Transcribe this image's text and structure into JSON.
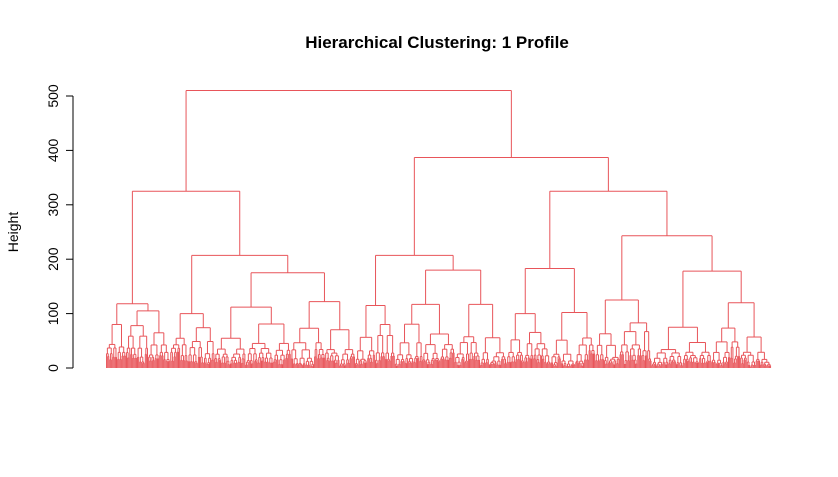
{
  "chart_data": {
    "type": "dendrogram",
    "title": "Hierarchical Clustering: 1 Profile",
    "xlabel": "",
    "ylabel": "Height",
    "ylim": [
      0,
      500
    ],
    "yticks": [
      0,
      100,
      200,
      300,
      400,
      500
    ],
    "ytick_labels": [
      "0",
      "100",
      "200",
      "300",
      "400",
      "500"
    ],
    "line_color": "#e8555a",
    "leaf_count": 600,
    "merges": [
      {
        "id": "root",
        "height": 510,
        "left": "A",
        "right": "B"
      },
      {
        "id": "A",
        "height": 325,
        "left": "A1",
        "right": "A2"
      },
      {
        "id": "A1",
        "height": 118,
        "left": "A1a",
        "right": "A1b"
      },
      {
        "id": "A1a",
        "height": 80
      },
      {
        "id": "A1b",
        "height": 105
      },
      {
        "id": "A2",
        "height": 207,
        "left": "A2a",
        "right": "A2b"
      },
      {
        "id": "A2a",
        "height": 100
      },
      {
        "id": "A2b",
        "height": 175,
        "left": "A2b1",
        "right": "A2b2"
      },
      {
        "id": "A2b1",
        "height": 112
      },
      {
        "id": "A2b2",
        "height": 122
      },
      {
        "id": "B",
        "height": 387,
        "left": "B1",
        "right": "B2"
      },
      {
        "id": "B1",
        "height": 207,
        "left": "B1a",
        "right": "B1b"
      },
      {
        "id": "B1a",
        "height": 115
      },
      {
        "id": "B1b",
        "height": 180,
        "left": "B1b1",
        "right": "B1b2"
      },
      {
        "id": "B1b1",
        "height": 117
      },
      {
        "id": "B1b2",
        "height": 117
      },
      {
        "id": "B2",
        "height": 325,
        "left": "B2a",
        "right": "B2b"
      },
      {
        "id": "B2a",
        "height": 183,
        "left": "B2a1",
        "right": "B2a2"
      },
      {
        "id": "B2a1",
        "height": 100
      },
      {
        "id": "B2a2",
        "height": 102
      },
      {
        "id": "B2b",
        "height": 243,
        "left": "B2b1",
        "right": "B2b2"
      },
      {
        "id": "B2b1",
        "height": 125
      },
      {
        "id": "B2b2",
        "height": 178,
        "left": "B2b2a",
        "right": "B2b2b"
      },
      {
        "id": "B2b2a",
        "height": 75
      },
      {
        "id": "B2b2b",
        "height": 120
      }
    ]
  }
}
